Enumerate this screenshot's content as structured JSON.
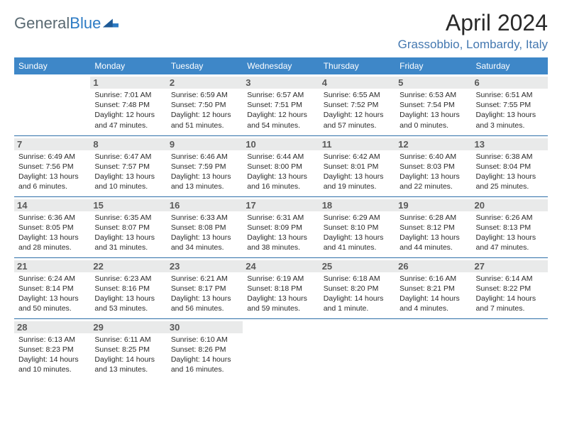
{
  "logo": {
    "text1": "General",
    "text2": "Blue"
  },
  "title": "April 2024",
  "location": "Grassobbio, Lombardy, Italy",
  "colors": {
    "header_bg": "#3e87c8",
    "header_text": "#ffffff",
    "daynum_bg": "#e9eaea",
    "daynum_text": "#595959",
    "border": "#2d6fa8",
    "location_text": "#4478b0",
    "logo_gray": "#5a6a72",
    "logo_blue": "#2d7bc4"
  },
  "weekdays": [
    "Sunday",
    "Monday",
    "Tuesday",
    "Wednesday",
    "Thursday",
    "Friday",
    "Saturday"
  ],
  "weeks": [
    [
      null,
      {
        "day": "1",
        "sunrise": "7:01 AM",
        "sunset": "7:48 PM",
        "daylight": "12 hours and 47 minutes."
      },
      {
        "day": "2",
        "sunrise": "6:59 AM",
        "sunset": "7:50 PM",
        "daylight": "12 hours and 51 minutes."
      },
      {
        "day": "3",
        "sunrise": "6:57 AM",
        "sunset": "7:51 PM",
        "daylight": "12 hours and 54 minutes."
      },
      {
        "day": "4",
        "sunrise": "6:55 AM",
        "sunset": "7:52 PM",
        "daylight": "12 hours and 57 minutes."
      },
      {
        "day": "5",
        "sunrise": "6:53 AM",
        "sunset": "7:54 PM",
        "daylight": "13 hours and 0 minutes."
      },
      {
        "day": "6",
        "sunrise": "6:51 AM",
        "sunset": "7:55 PM",
        "daylight": "13 hours and 3 minutes."
      }
    ],
    [
      {
        "day": "7",
        "sunrise": "6:49 AM",
        "sunset": "7:56 PM",
        "daylight": "13 hours and 6 minutes."
      },
      {
        "day": "8",
        "sunrise": "6:47 AM",
        "sunset": "7:57 PM",
        "daylight": "13 hours and 10 minutes."
      },
      {
        "day": "9",
        "sunrise": "6:46 AM",
        "sunset": "7:59 PM",
        "daylight": "13 hours and 13 minutes."
      },
      {
        "day": "10",
        "sunrise": "6:44 AM",
        "sunset": "8:00 PM",
        "daylight": "13 hours and 16 minutes."
      },
      {
        "day": "11",
        "sunrise": "6:42 AM",
        "sunset": "8:01 PM",
        "daylight": "13 hours and 19 minutes."
      },
      {
        "day": "12",
        "sunrise": "6:40 AM",
        "sunset": "8:03 PM",
        "daylight": "13 hours and 22 minutes."
      },
      {
        "day": "13",
        "sunrise": "6:38 AM",
        "sunset": "8:04 PM",
        "daylight": "13 hours and 25 minutes."
      }
    ],
    [
      {
        "day": "14",
        "sunrise": "6:36 AM",
        "sunset": "8:05 PM",
        "daylight": "13 hours and 28 minutes."
      },
      {
        "day": "15",
        "sunrise": "6:35 AM",
        "sunset": "8:07 PM",
        "daylight": "13 hours and 31 minutes."
      },
      {
        "day": "16",
        "sunrise": "6:33 AM",
        "sunset": "8:08 PM",
        "daylight": "13 hours and 34 minutes."
      },
      {
        "day": "17",
        "sunrise": "6:31 AM",
        "sunset": "8:09 PM",
        "daylight": "13 hours and 38 minutes."
      },
      {
        "day": "18",
        "sunrise": "6:29 AM",
        "sunset": "8:10 PM",
        "daylight": "13 hours and 41 minutes."
      },
      {
        "day": "19",
        "sunrise": "6:28 AM",
        "sunset": "8:12 PM",
        "daylight": "13 hours and 44 minutes."
      },
      {
        "day": "20",
        "sunrise": "6:26 AM",
        "sunset": "8:13 PM",
        "daylight": "13 hours and 47 minutes."
      }
    ],
    [
      {
        "day": "21",
        "sunrise": "6:24 AM",
        "sunset": "8:14 PM",
        "daylight": "13 hours and 50 minutes."
      },
      {
        "day": "22",
        "sunrise": "6:23 AM",
        "sunset": "8:16 PM",
        "daylight": "13 hours and 53 minutes."
      },
      {
        "day": "23",
        "sunrise": "6:21 AM",
        "sunset": "8:17 PM",
        "daylight": "13 hours and 56 minutes."
      },
      {
        "day": "24",
        "sunrise": "6:19 AM",
        "sunset": "8:18 PM",
        "daylight": "13 hours and 59 minutes."
      },
      {
        "day": "25",
        "sunrise": "6:18 AM",
        "sunset": "8:20 PM",
        "daylight": "14 hours and 1 minute."
      },
      {
        "day": "26",
        "sunrise": "6:16 AM",
        "sunset": "8:21 PM",
        "daylight": "14 hours and 4 minutes."
      },
      {
        "day": "27",
        "sunrise": "6:14 AM",
        "sunset": "8:22 PM",
        "daylight": "14 hours and 7 minutes."
      }
    ],
    [
      {
        "day": "28",
        "sunrise": "6:13 AM",
        "sunset": "8:23 PM",
        "daylight": "14 hours and 10 minutes."
      },
      {
        "day": "29",
        "sunrise": "6:11 AM",
        "sunset": "8:25 PM",
        "daylight": "14 hours and 13 minutes."
      },
      {
        "day": "30",
        "sunrise": "6:10 AM",
        "sunset": "8:26 PM",
        "daylight": "14 hours and 16 minutes."
      },
      null,
      null,
      null,
      null
    ]
  ],
  "labels": {
    "sunrise": "Sunrise:",
    "sunset": "Sunset:",
    "daylight": "Daylight:"
  }
}
